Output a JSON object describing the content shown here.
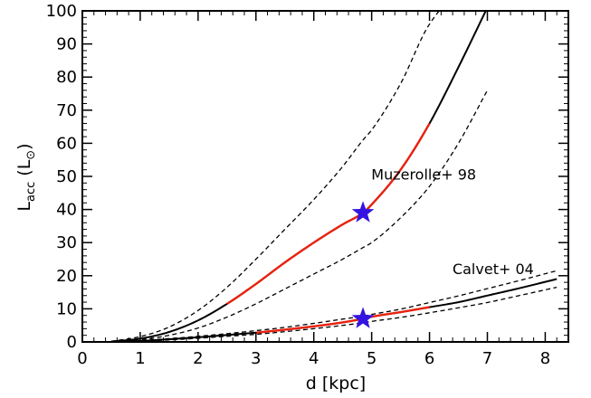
{
  "chart_data": {
    "type": "line",
    "xlabel": "d [kpc]",
    "ylabel": {
      "main": "L",
      "sub": "acc",
      "unit_main": "(L",
      "unit_sub": "⊙",
      "unit_close": ")"
    },
    "xlim": [
      0,
      8.4
    ],
    "ylim": [
      0,
      100
    ],
    "xticks": [
      "0",
      "1",
      "2",
      "3",
      "4",
      "5",
      "6",
      "7",
      "8"
    ],
    "yticks": [
      "0",
      "10",
      "20",
      "30",
      "40",
      "50",
      "60",
      "70",
      "80",
      "90",
      "100"
    ],
    "grid": false,
    "legend": "none",
    "colors": {
      "curve": "#000000",
      "highlight": "#e8220f",
      "star": "#3314e0"
    },
    "annotations": [
      {
        "text": "Muzerolle+ 98",
        "x": 5.9,
        "y": 49
      },
      {
        "text": "Calvet+ 04",
        "x": 7.1,
        "y": 20.5
      }
    ],
    "series": [
      {
        "curve": "muzerolle",
        "x": [
          0.5,
          1.0,
          1.5,
          2.0,
          2.5,
          3.0,
          3.5,
          4.0,
          4.5,
          4.85,
          5.0,
          5.5,
          6.0,
          6.5,
          7.0
        ],
        "y": [
          0.1,
          1.0,
          3.0,
          6.5,
          11.5,
          17.5,
          24.0,
          30.0,
          35.5,
          39.0,
          41.5,
          52.0,
          66.0,
          83.0,
          101.0
        ],
        "upper_y": [
          0.2,
          1.6,
          4.5,
          9.5,
          16.5,
          25.0,
          34.0,
          43.0,
          53.0,
          61.0,
          64.0,
          78.0,
          96.0,
          104.0,
          104.0
        ],
        "lower_y": [
          0.0,
          0.6,
          2.0,
          4.2,
          7.5,
          11.5,
          16.0,
          20.5,
          25.0,
          28.5,
          30.0,
          37.5,
          47.0,
          60.0,
          76.0
        ],
        "highlight_x": [
          2.5,
          6.0
        ]
      },
      {
        "curve": "calvet",
        "x": [
          0.5,
          1.0,
          1.5,
          2.0,
          2.5,
          3.0,
          3.5,
          4.0,
          4.5,
          4.85,
          5.0,
          5.5,
          6.0,
          6.5,
          7.0,
          7.5,
          8.2
        ],
        "y": [
          0.05,
          0.3,
          0.8,
          1.4,
          2.1,
          2.8,
          3.7,
          4.7,
          5.9,
          7.0,
          7.6,
          9.0,
          10.5,
          12.0,
          14.0,
          16.0,
          19.0
        ],
        "upper_y": [
          0.08,
          0.4,
          1.0,
          1.7,
          2.5,
          3.4,
          4.4,
          5.6,
          6.9,
          7.8,
          8.3,
          9.9,
          11.9,
          13.9,
          16.1,
          18.3,
          21.5
        ],
        "lower_y": [
          0.03,
          0.25,
          0.6,
          1.1,
          1.7,
          2.3,
          3.1,
          4.0,
          5.0,
          5.8,
          6.2,
          7.4,
          8.8,
          10.3,
          11.9,
          13.8,
          16.5
        ],
        "highlight_x": [
          3.0,
          6.0
        ]
      }
    ],
    "markers": [
      {
        "shape": "star",
        "x": 4.85,
        "y": 39
      },
      {
        "shape": "star",
        "x": 4.85,
        "y": 7
      }
    ]
  }
}
